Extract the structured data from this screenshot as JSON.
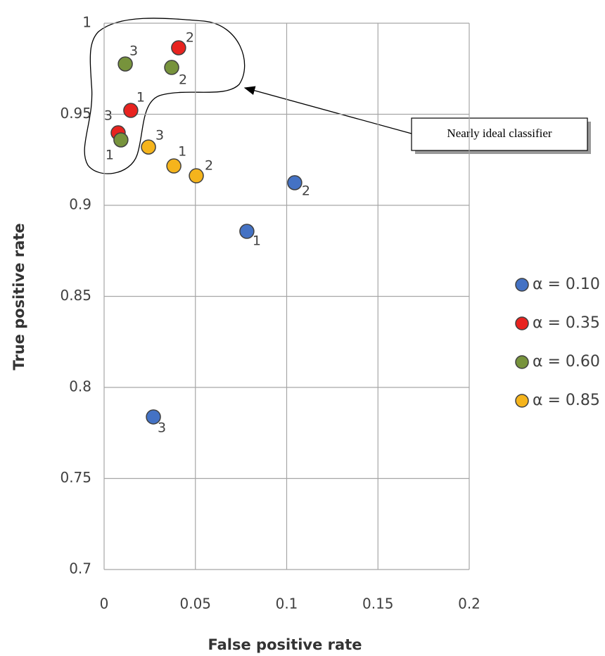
{
  "chart_data": {
    "type": "scatter",
    "x_label": "False positive rate",
    "y_label": "True positive rate",
    "xlim": [
      0,
      0.2
    ],
    "xticks": [
      0,
      0.05,
      0.1,
      0.15,
      0.2
    ],
    "ylim": [
      0.7,
      1
    ],
    "yticks": [
      0.7,
      0.75,
      0.8,
      0.85,
      0.9,
      0.95,
      1
    ],
    "grid": true,
    "legend": "right",
    "annotation": "Nearly ideal classifier",
    "series": [
      {
        "name": "α = 0.10",
        "color": "#4472c4",
        "labels": [
          "1",
          "2",
          "3"
        ],
        "x": [
          0.0782,
          0.1044,
          0.027
        ],
        "values": [
          0.8857,
          0.9124,
          0.7838
        ]
      },
      {
        "name": "α = 0.35",
        "color": "#e8231f",
        "labels": [
          "1",
          "2",
          "3"
        ],
        "x": [
          0.0146,
          0.0408,
          0.0077
        ],
        "values": [
          0.9521,
          0.9865,
          0.9398
        ]
      },
      {
        "name": "α = 0.60",
        "color": "#77933c",
        "labels": [
          "1",
          "2",
          "3"
        ],
        "x": [
          0.0092,
          0.037,
          0.0116
        ],
        "values": [
          0.9359,
          0.9757,
          0.9776
        ]
      },
      {
        "name": "α = 0.85",
        "color": "#f5b41c",
        "labels": [
          "1",
          "2",
          "3"
        ],
        "x": [
          0.0382,
          0.0505,
          0.0243
        ],
        "values": [
          0.9216,
          0.9162,
          0.932
        ]
      }
    ]
  }
}
